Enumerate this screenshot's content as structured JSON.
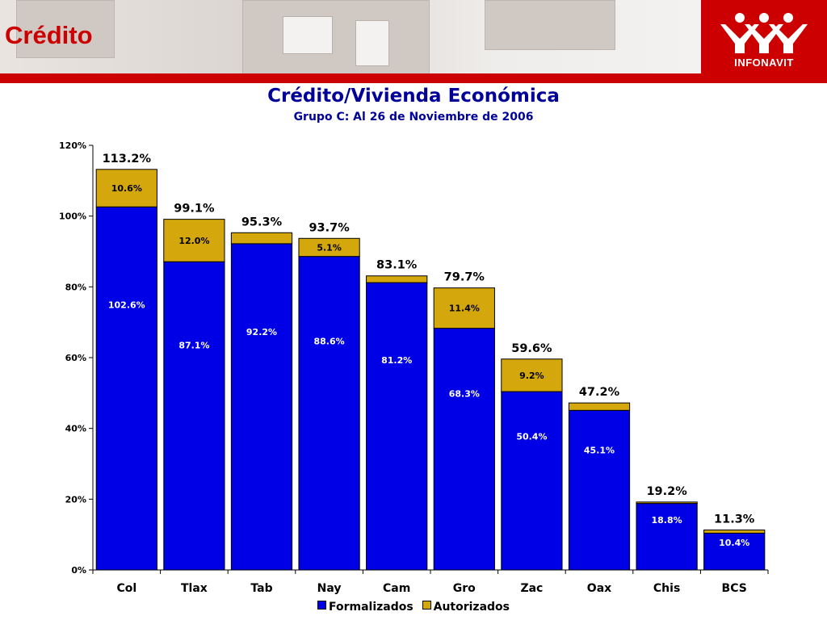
{
  "header": {
    "title": "Crédito",
    "logo_text": "INFONAVIT"
  },
  "colors": {
    "accent": "#cc0000",
    "formalizados": "#0000e6",
    "autorizados": "#d4a70d",
    "title": "#000099"
  },
  "chart_data": {
    "type": "bar",
    "stacked": true,
    "title": "Crédito/Vivienda Económica",
    "subtitle": "Grupo C: Al 26 de Noviembre de 2006",
    "categories": [
      "Col",
      "Tlax",
      "Tab",
      "Nay",
      "Cam",
      "Gro",
      "Zac",
      "Oax",
      "Chis",
      "BCS"
    ],
    "series": [
      {
        "name": "Formalizados",
        "values": [
          102.6,
          87.1,
          92.2,
          88.6,
          81.2,
          68.3,
          50.4,
          45.1,
          18.8,
          10.4
        ],
        "labels": [
          "102.6%",
          "87.1%",
          "92.2%",
          "88.6%",
          "81.2%",
          "68.3%",
          "50.4%",
          "45.1%",
          "18.8%",
          "10.4%"
        ]
      },
      {
        "name": "Autorizados",
        "values": [
          10.6,
          12.0,
          3.1,
          5.1,
          1.9,
          11.4,
          9.2,
          2.1,
          0.4,
          0.9
        ],
        "labels": [
          "10.6%",
          "12.0%",
          "",
          "5.1%",
          "",
          "11.4%",
          "9.2%",
          "",
          "",
          ""
        ]
      }
    ],
    "totals": [
      "113.2%",
      "99.1%",
      "95.3%",
      "93.7%",
      "83.1%",
      "79.7%",
      "59.6%",
      "47.2%",
      "19.2%",
      "11.3%"
    ],
    "yaxis": {
      "ylim": [
        0,
        120
      ],
      "ticks": [
        "0%",
        "20%",
        "40%",
        "60%",
        "80%",
        "100%",
        "120%"
      ]
    },
    "xlabel": "",
    "ylabel": "",
    "grid": false,
    "legend_position": "bottom-center"
  }
}
